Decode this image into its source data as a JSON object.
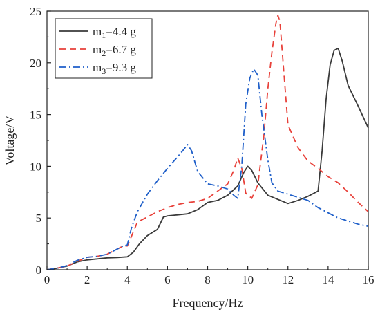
{
  "chart_data": {
    "type": "line",
    "xlabel": "Frequency/Hz",
    "ylabel": "Voltage/V",
    "xlim": [
      0,
      16
    ],
    "ylim": [
      0,
      25
    ],
    "x_ticks": [
      0,
      2,
      4,
      6,
      8,
      10,
      12,
      14,
      16
    ],
    "y_ticks": [
      0,
      5,
      10,
      15,
      20,
      25
    ],
    "grid": false,
    "legend_position": "top-left",
    "series": [
      {
        "name": "m1=4.4 g",
        "label_parts": {
          "base": "m",
          "sub": "1",
          "rest": "=4.4 g"
        },
        "color": "#3a3a3a",
        "style": "solid",
        "x": [
          0,
          0.5,
          1,
          1.5,
          2,
          2.5,
          3,
          3.5,
          4,
          4.3,
          4.6,
          5,
          5.5,
          5.8,
          6,
          6.5,
          7,
          7.5,
          8,
          8.5,
          9,
          9.5,
          9.8,
          10,
          10.2,
          10.5,
          11,
          11.5,
          12,
          12.5,
          13,
          13.5,
          13.7,
          13.9,
          14.1,
          14.3,
          14.5,
          14.7,
          15,
          15.5,
          16
        ],
        "y": [
          0,
          0.15,
          0.35,
          0.75,
          0.95,
          1.05,
          1.15,
          1.18,
          1.25,
          1.7,
          2.5,
          3.3,
          3.9,
          5.1,
          5.2,
          5.3,
          5.4,
          5.8,
          6.5,
          6.7,
          7.2,
          8.1,
          9.4,
          10.0,
          9.6,
          8.4,
          7.2,
          6.8,
          6.4,
          6.7,
          7.1,
          7.6,
          11.5,
          16.5,
          19.8,
          21.2,
          21.4,
          20.2,
          17.8,
          15.8,
          13.7
        ]
      },
      {
        "name": "m2=6.7 g",
        "label_parts": {
          "base": "m",
          "sub": "2",
          "rest": "=6.7 g"
        },
        "color": "#e8413a",
        "style": "dashed",
        "x": [
          0,
          0.5,
          1,
          1.5,
          2,
          2.5,
          3,
          3.5,
          3.8,
          4,
          4.2,
          4.5,
          5,
          5.5,
          6,
          6.5,
          7,
          7.5,
          8,
          8.5,
          9,
          9.3,
          9.5,
          9.7,
          9.9,
          10.2,
          10.5,
          10.8,
          11,
          11.2,
          11.4,
          11.5,
          11.6,
          11.8,
          12,
          12.5,
          13,
          13.5,
          14,
          14.5,
          15,
          15.5,
          16
        ],
        "y": [
          0,
          0.15,
          0.35,
          0.8,
          1.2,
          1.3,
          1.5,
          2.0,
          2.3,
          2.3,
          3.2,
          4.6,
          5.1,
          5.6,
          6.0,
          6.3,
          6.5,
          6.6,
          6.9,
          7.6,
          8.3,
          9.6,
          10.8,
          9.8,
          7.4,
          6.9,
          8.2,
          13.0,
          17.5,
          21.0,
          23.8,
          24.6,
          24.0,
          19.0,
          14.0,
          11.8,
          10.5,
          9.8,
          9.0,
          8.4,
          7.5,
          6.5,
          5.6
        ]
      },
      {
        "name": "m3=9.3 g",
        "label_parts": {
          "base": "m",
          "sub": "3",
          "rest": "=9.3 g"
        },
        "color": "#1f5fc9",
        "style": "dashdot",
        "x": [
          0,
          0.5,
          1,
          1.5,
          2,
          2.5,
          3,
          3.5,
          3.8,
          4,
          4.2,
          4.5,
          5,
          5.5,
          6,
          6.5,
          6.8,
          7,
          7.2,
          7.5,
          8,
          8.5,
          9,
          9.3,
          9.5,
          9.7,
          9.9,
          10.1,
          10.3,
          10.5,
          10.7,
          11,
          11.2,
          11.5,
          12,
          12.5,
          13,
          13.5,
          14,
          14.5,
          15,
          15.5,
          16
        ],
        "y": [
          0,
          0.15,
          0.4,
          0.9,
          1.2,
          1.3,
          1.5,
          2.0,
          2.3,
          2.4,
          4.0,
          5.6,
          7.3,
          8.6,
          9.8,
          10.9,
          11.6,
          12.1,
          11.5,
          9.5,
          8.3,
          8.1,
          7.8,
          7.2,
          6.9,
          10.0,
          16.0,
          18.5,
          19.4,
          18.8,
          15.0,
          10.6,
          8.4,
          7.6,
          7.3,
          7.0,
          6.7,
          6.0,
          5.5,
          5.0,
          4.7,
          4.4,
          4.2
        ]
      }
    ]
  }
}
